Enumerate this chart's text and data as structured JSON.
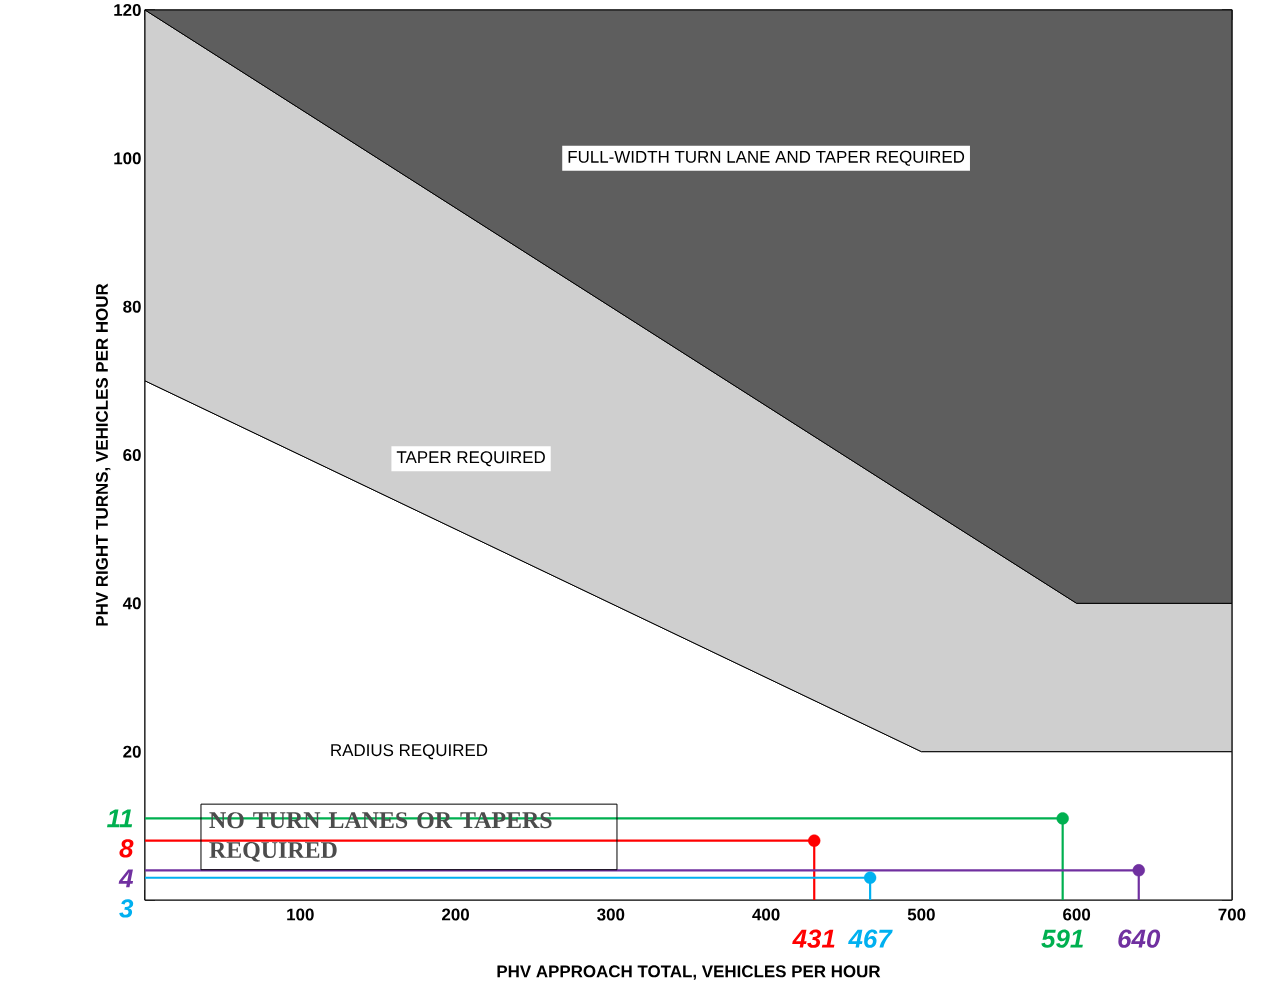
{
  "chart_data": {
    "type": "area",
    "stacked": true,
    "xlabel": "PHV APPROACH TOTAL, VEHICLES PER HOUR",
    "ylabel": "PHV RIGHT TURNS, VEHICLES PER HOUR",
    "x": [
      0,
      500,
      600,
      700
    ],
    "xlim": [
      0,
      700
    ],
    "xticks": [
      {
        "value": 0,
        "label": null
      },
      100,
      200,
      300,
      400,
      500,
      600,
      700
    ],
    "ylim": [
      0,
      120
    ],
    "yticks": [
      {
        "value": 0,
        "label": null
      },
      20,
      40,
      60,
      80,
      100,
      120
    ],
    "series": [
      {
        "color": "#ffffff",
        "values": [
          70,
          20,
          20,
          20
        ]
      },
      {
        "color": "#cfcfcf",
        "values": [
          50,
          33.3,
          20,
          20
        ]
      },
      {
        "color": "#5e5e5e",
        "values": [
          0,
          66.7,
          80,
          80
        ]
      },
      {
        "type": "line",
        "color": "#ff0000",
        "x": [
          0,
          431,
          431
        ],
        "values": [
          8,
          8,
          0
        ]
      },
      {
        "type": "line",
        "color": "#00b0f0",
        "x": [
          0,
          467,
          467
        ],
        "values": [
          3,
          3,
          0
        ]
      },
      {
        "type": "line",
        "color": "#00b050",
        "x": [
          0,
          591,
          591
        ],
        "values": [
          11,
          11,
          0
        ]
      },
      {
        "type": "line",
        "color": "#7030a0",
        "x": [
          0,
          640,
          640
        ],
        "values": [
          4,
          4,
          0
        ]
      },
      {
        "type": "scatter",
        "marker": "circle",
        "colors": [
          "#ff0000",
          "#00b0f0",
          "#00b050",
          "#7030a0"
        ],
        "x": [
          431,
          467,
          591,
          640
        ],
        "values": [
          8,
          3,
          11,
          4
        ]
      }
    ],
    "annotations": [
      "FULL-WIDTH TURN LANE AND TAPER REQUIRED",
      "TAPER REQUIRED",
      "RADIUS REQUIRED",
      "NO TURN LANES OR TAPERS REQUIRED",
      "8",
      "431",
      "3",
      "467",
      "11",
      "591",
      "4",
      "640"
    ]
  }
}
